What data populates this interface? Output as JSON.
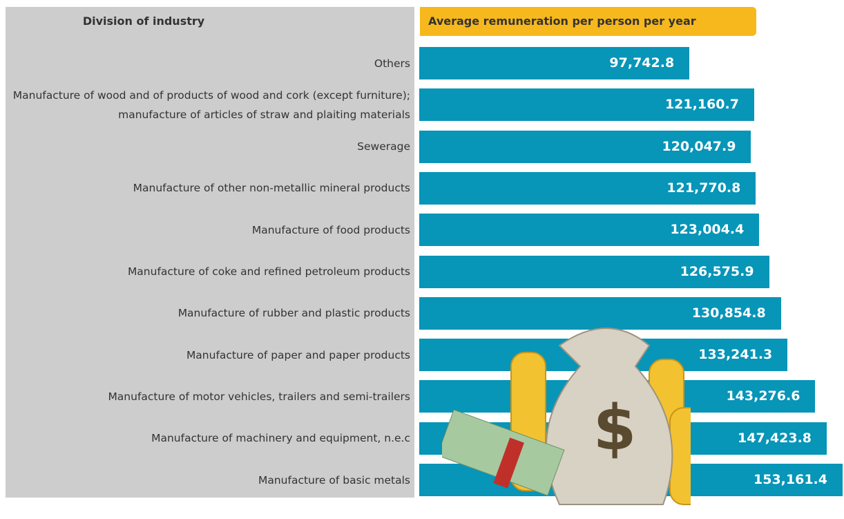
{
  "chart_data": {
    "type": "bar",
    "orientation": "horizontal",
    "category_header": "Division of industry",
    "value_header": "Average remuneration per person per year",
    "categories": [
      "Others",
      "Manufacture of wood and of products of wood and cork (except furniture); manufacture of articles of straw and plaiting materials",
      "Sewerage",
      "Manufacture of other non-metallic mineral products",
      "Manufacture of food products",
      "Manufacture of coke and refined petroleum products",
      "Manufacture of rubber and plastic products",
      "Manufacture of paper and paper products",
      "Manufacture of motor vehicles, trailers and semi-trailers",
      "Manufacture of machinery and equipment, n.e.c",
      "Manufacture of basic metals"
    ],
    "values": [
      97742.8,
      121160.7,
      120047.9,
      121770.8,
      123004.4,
      126575.9,
      130854.8,
      133241.3,
      143276.6,
      147423.8,
      153161.4
    ],
    "value_labels": [
      "97,742.8",
      "121,160.7",
      "120,047.9",
      "121,770.8",
      "123,004.4",
      "126,575.9",
      "130,854.8",
      "133,241.3",
      "143,276.6",
      "147,423.8",
      "153,161.4"
    ],
    "color": "#0795b8",
    "header_color": "#f6b81c"
  }
}
